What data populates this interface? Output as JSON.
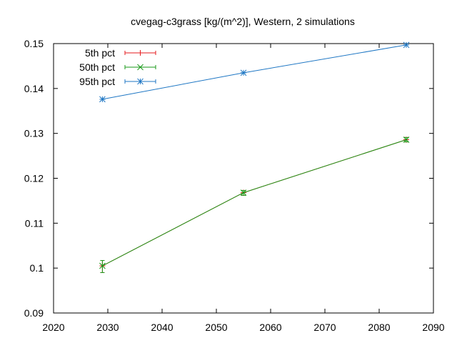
{
  "chart_data": {
    "type": "line",
    "title": "cvegag-c3grass [kg/(m^2)], Western, 2 simulations",
    "xlabel": "",
    "ylabel": "",
    "xlim": [
      2020,
      2090
    ],
    "ylim": [
      0.09,
      0.15
    ],
    "xticks": [
      "2020",
      "2030",
      "2040",
      "2050",
      "2060",
      "2070",
      "2080",
      "2090"
    ],
    "yticks": [
      "0.09",
      "0.1",
      "0.11",
      "0.12",
      "0.13",
      "0.14",
      "0.15"
    ],
    "legend_position": "top-left",
    "grid": false,
    "x": [
      2029,
      2055,
      2085
    ],
    "series": [
      {
        "name": "5th pct",
        "color": "#e41a1c",
        "marker": "plus",
        "values": [
          0.1005,
          0.1168,
          0.1286
        ],
        "err_low": [
          0.099,
          0.1162,
          0.1281
        ],
        "err_high": [
          0.1017,
          0.1173,
          0.1291
        ]
      },
      {
        "name": "50th pct",
        "color": "#1a9a1a",
        "marker": "cross",
        "values": [
          0.1005,
          0.1168,
          0.1286
        ],
        "err_low": [
          0.099,
          0.1162,
          0.1281
        ],
        "err_high": [
          0.1017,
          0.1173,
          0.1291
        ]
      },
      {
        "name": "95th pct",
        "color": "#1f77c4",
        "marker": "star",
        "values": [
          0.1376,
          0.1435,
          0.1497
        ],
        "err_low": [
          0.1376,
          0.1435,
          0.1497
        ],
        "err_high": [
          0.1376,
          0.1435,
          0.1497
        ]
      }
    ]
  }
}
